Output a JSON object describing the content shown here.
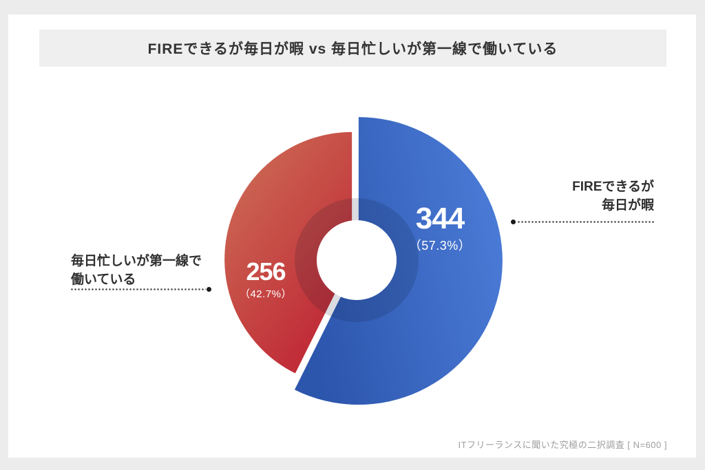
{
  "page": {
    "background": "#ececec",
    "card_background": "#ffffff"
  },
  "header": {
    "title": "FIREできるが毎日が暇 vs 毎日忙しいが第一線で働いている",
    "band_background": "#efefef",
    "text_color": "#333333"
  },
  "chart_data": {
    "type": "pie",
    "title": "FIREできるが毎日が暇 vs 毎日忙しいが第一線で働いている",
    "total": 600,
    "start_angle": "top",
    "direction": "clockwise",
    "donut_hole": true,
    "legend_position": "side-callouts",
    "slices": [
      {
        "label": "FIREできるが毎日が暇",
        "value": 344,
        "percent": 57.3,
        "pct_label": "（57.3%）",
        "color_start": "#2c55ac",
        "color_end": "#4b7cd8",
        "callout": [
          "FIREできるが",
          "毎日が暇"
        ]
      },
      {
        "label": "毎日忙しいが第一線で働いている",
        "value": 256,
        "percent": 42.7,
        "pct_label": "（42.7%）",
        "color_start": "#cd7157",
        "color_end": "#bf2434",
        "callout": [
          "毎日忙しいが第一線で",
          "働いている"
        ]
      }
    ]
  },
  "footer": {
    "source": "ITフリーランスに聞いた究極の二択調査 [ N=600 ]"
  }
}
